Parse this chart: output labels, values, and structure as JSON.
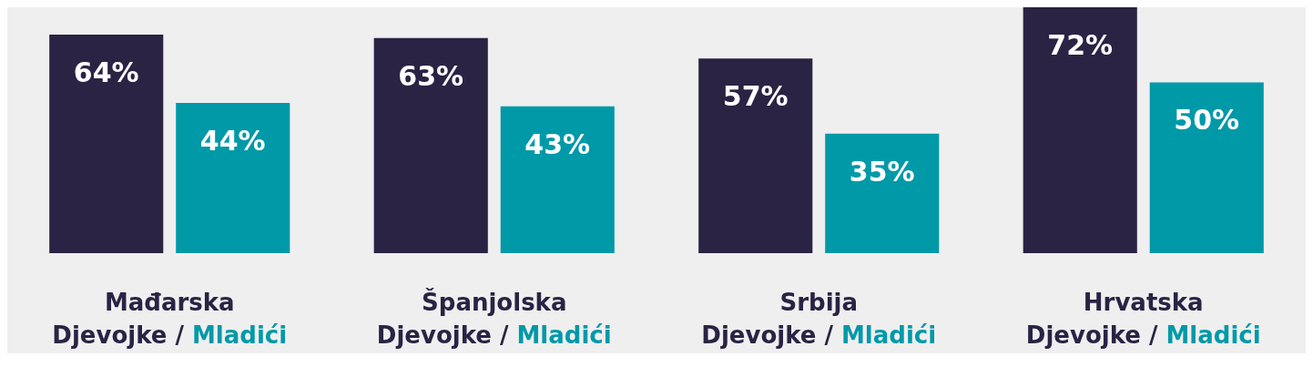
{
  "chart_data": {
    "type": "bar",
    "categories": [
      "Mađarska",
      "Španjolska",
      "Srbija",
      "Hrvatska"
    ],
    "series": [
      {
        "name": "Djevojke",
        "color": "#2a2344",
        "values": [
          64,
          63,
          57,
          72
        ],
        "value_labels": [
          "64%",
          "63%",
          "57%",
          "72%"
        ]
      },
      {
        "name": "Mladići",
        "color": "#0099a8",
        "values": [
          44,
          43,
          35,
          50
        ],
        "value_labels": [
          "44%",
          "43%",
          "35%",
          "50%"
        ]
      }
    ],
    "annotations": [
      "/"
    ]
  }
}
